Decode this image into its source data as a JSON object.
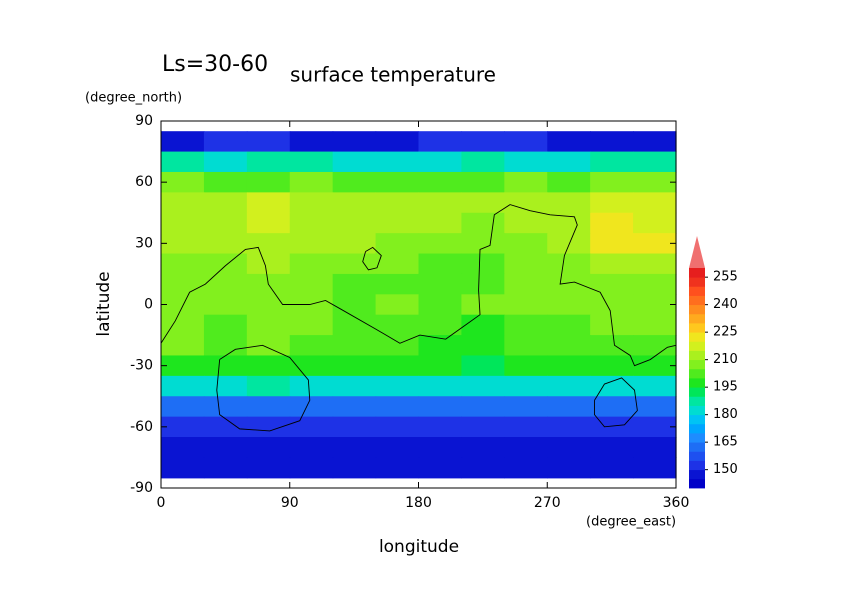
{
  "chart_data": {
    "type": "heatmap",
    "title": "surface temperature",
    "subtitle": "Ls=30-60",
    "y_units": "(degree_north)",
    "x_units": "(degree_east)",
    "y_label": "latitude",
    "x_label": "longitude",
    "x": [
      15,
      45,
      75,
      105,
      135,
      165,
      195,
      225,
      255,
      285,
      315,
      345
    ],
    "y": [
      80,
      70,
      60,
      50,
      40,
      30,
      20,
      10,
      0,
      -10,
      -20,
      -30,
      -40,
      -50,
      -60,
      -70,
      -80
    ],
    "z": [
      [
        148,
        150,
        150,
        148,
        147,
        147,
        150,
        152,
        150,
        148,
        147,
        148
      ],
      [
        185,
        182,
        185,
        185,
        180,
        180,
        182,
        185,
        180,
        182,
        185,
        185
      ],
      [
        205,
        203,
        203,
        205,
        203,
        203,
        203,
        203,
        205,
        203,
        205,
        205
      ],
      [
        212,
        210,
        218,
        212,
        210,
        210,
        210,
        210,
        210,
        210,
        218,
        215
      ],
      [
        212,
        210,
        215,
        212,
        210,
        210,
        210,
        208,
        210,
        212,
        220,
        218
      ],
      [
        210,
        210,
        212,
        210,
        210,
        208,
        208,
        205,
        207,
        210,
        220,
        220
      ],
      [
        205,
        207,
        210,
        205,
        205,
        205,
        203,
        203,
        205,
        207,
        212,
        212
      ],
      [
        205,
        205,
        207,
        205,
        203,
        203,
        203,
        203,
        205,
        205,
        207,
        207
      ],
      [
        207,
        205,
        208,
        205,
        203,
        205,
        203,
        205,
        205,
        205,
        207,
        207
      ],
      [
        205,
        203,
        207,
        205,
        200,
        203,
        200,
        198,
        203,
        203,
        205,
        205
      ],
      [
        205,
        200,
        205,
        203,
        200,
        203,
        198,
        197,
        200,
        200,
        203,
        203
      ],
      [
        197,
        195,
        198,
        195,
        195,
        195,
        195,
        193,
        195,
        195,
        195,
        197
      ],
      [
        183,
        182,
        185,
        183,
        180,
        180,
        182,
        180,
        180,
        182,
        183,
        183
      ],
      [
        162,
        160,
        163,
        162,
        160,
        160,
        160,
        160,
        160,
        160,
        162,
        163
      ],
      [
        150,
        150,
        150,
        150,
        150,
        150,
        150,
        150,
        150,
        150,
        150,
        150
      ],
      [
        145,
        145,
        145,
        145,
        145,
        145,
        145,
        145,
        145,
        145,
        145,
        145
      ],
      [
        145,
        145,
        145,
        145,
        145,
        145,
        145,
        145,
        145,
        145,
        145,
        145
      ]
    ],
    "xlim": [
      0,
      360
    ],
    "ylim": [
      -90,
      90
    ],
    "xticks": [
      0,
      90,
      180,
      270,
      360
    ],
    "yticks": [
      90,
      60,
      30,
      0,
      -30,
      -60,
      -90
    ],
    "zlim": [
      140,
      260
    ],
    "colorbar_ticks": [
      150,
      165,
      180,
      195,
      210,
      225,
      240,
      255
    ],
    "colors": [
      "#0000c8",
      "#0a14d2",
      "#1e32e6",
      "#1e50f0",
      "#1e6ef5",
      "#1e8cff",
      "#00a5ff",
      "#00c3f5",
      "#00dcd2",
      "#00e6a0",
      "#00e65a",
      "#1ee61e",
      "#50eb1e",
      "#82f01e",
      "#aaf01e",
      "#d2f01e",
      "#f0e61e",
      "#ffc81e",
      "#ffaa1e",
      "#ff8c1e",
      "#ff6e1e",
      "#ff501e",
      "#f0321e",
      "#e61e1e"
    ],
    "over_color": "#f07070",
    "contour_color": "#000000",
    "contours": [
      {
        "x": [
          0,
          10,
          20,
          31,
          45,
          59,
          68,
          73,
          75,
          85,
          104,
          115,
          125,
          150,
          167,
          181,
          199,
          213,
          223,
          222,
          223,
          230,
          233,
          244,
          258,
          272,
          289,
          291,
          282,
          279,
          289,
          307,
          314,
          317,
          328,
          331,
          342,
          354,
          360
        ],
        "y": [
          -19,
          -8,
          6,
          10,
          19,
          27,
          28,
          19,
          10,
          0,
          0,
          2,
          -2,
          -12,
          -19,
          -15,
          -17,
          -10,
          -5,
          7,
          27,
          29,
          44,
          49,
          46,
          44,
          43,
          39,
          24,
          10,
          11,
          6,
          -3,
          -20,
          -25,
          -30,
          -27,
          -21,
          -20
        ]
      },
      {
        "x": [
          41,
          52,
          71,
          90,
          103,
          104,
          97,
          76,
          55,
          41,
          39,
          41
        ],
        "y": [
          -27,
          -22,
          -20,
          -26,
          -37,
          -47,
          -57,
          -62,
          -61,
          -54,
          -42,
          -27
        ]
      },
      {
        "x": [
          303,
          310,
          322,
          331,
          333,
          324,
          310,
          303,
          303
        ],
        "y": [
          -47,
          -39,
          -36,
          -42,
          -52,
          -59,
          -60,
          -54,
          -47
        ]
      },
      {
        "x": [
          143,
          148,
          154,
          151,
          145,
          141,
          143
        ],
        "y": [
          26,
          28,
          24,
          18,
          17,
          21,
          26
        ]
      }
    ]
  }
}
